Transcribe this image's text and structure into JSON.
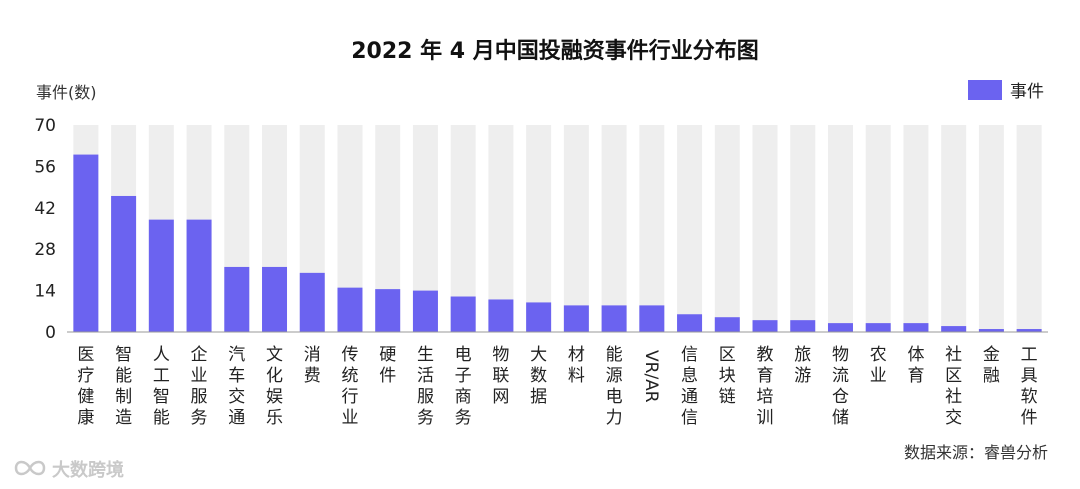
{
  "chart_data": {
    "type": "bar",
    "title": "2022 年 4 月中国投融资事件行业分布图",
    "ylabel": "事件(数)",
    "xlabel": "",
    "legend": {
      "position": "top-right",
      "entries": [
        "事件"
      ]
    },
    "ylim": [
      0,
      70
    ],
    "yticks": [
      0,
      14,
      28,
      42,
      56,
      70
    ],
    "grid": true,
    "categories": [
      "医疗健康",
      "智能制造",
      "人工智能",
      "企业服务",
      "汽车交通",
      "文化娱乐",
      "消费",
      "传统行业",
      "硬件",
      "生活服务",
      "电子商务",
      "物联网",
      "大数据",
      "材料",
      "能源电力",
      "VR/AR",
      "信息通信",
      "区块链",
      "教育培训",
      "旅游",
      "物流仓储",
      "农业",
      "体育",
      "社区社交",
      "金融",
      "工具软件"
    ],
    "series": [
      {
        "name": "事件",
        "color": "#6b63f0",
        "values": [
          60,
          46,
          38,
          38,
          22,
          22,
          20,
          15,
          14.5,
          14,
          12,
          11,
          10,
          9,
          9,
          9,
          6,
          5,
          4,
          4,
          3,
          3,
          3,
          2,
          1,
          1
        ]
      }
    ],
    "background_bar_color": "#eeeeee"
  },
  "source": "数据来源：睿兽分析",
  "watermark": "大数跨境",
  "watermark_icon": "infinity-logo-icon"
}
